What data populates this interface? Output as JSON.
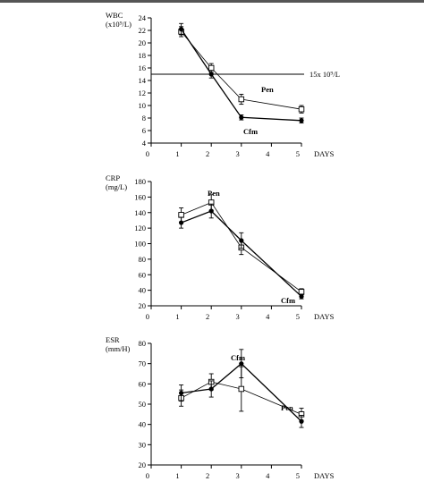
{
  "chart_data": [
    {
      "type": "line",
      "ylabel": "WBC",
      "yunit": "(x10⁹/L)",
      "xlabel": "DAYS",
      "xlim": [
        0,
        5
      ],
      "ylim": [
        4,
        24
      ],
      "xticks": [
        0,
        1,
        2,
        3,
        4,
        5
      ],
      "yticks": [
        4,
        6,
        8,
        10,
        12,
        14,
        16,
        18,
        20,
        22,
        24
      ],
      "reference_line": {
        "y": 15,
        "label": "15x 10⁹/L"
      },
      "series": [
        {
          "name": "Pen",
          "marker": "open-square",
          "x": [
            1,
            2,
            3,
            5
          ],
          "y": [
            21.8,
            16.0,
            11.0,
            9.4
          ],
          "err": [
            0.8,
            0.7,
            0.8,
            0.6
          ]
        },
        {
          "name": "Cfm",
          "marker": "filled-circle",
          "x": [
            1,
            2,
            3,
            5
          ],
          "y": [
            22.2,
            15.0,
            8.1,
            7.6
          ],
          "err": [
            0.9,
            0.6,
            0.4,
            0.4
          ]
        }
      ]
    },
    {
      "type": "line",
      "ylabel": "CRP",
      "yunit": "(mg/L)",
      "xlabel": "DAYS",
      "xlim": [
        0,
        5
      ],
      "ylim": [
        20,
        180
      ],
      "xticks": [
        0,
        1,
        2,
        3,
        4,
        5
      ],
      "yticks": [
        20,
        40,
        60,
        80,
        100,
        120,
        140,
        160,
        180
      ],
      "series": [
        {
          "name": "Pen",
          "marker": "open-square",
          "x": [
            1,
            2,
            3,
            5
          ],
          "y": [
            137,
            153,
            95,
            38
          ],
          "err": [
            9,
            10,
            9,
            4
          ]
        },
        {
          "name": "Cfm",
          "marker": "filled-circle",
          "x": [
            1,
            2,
            3,
            5
          ],
          "y": [
            127,
            142,
            104,
            32
          ],
          "err": [
            7,
            9,
            10,
            3
          ]
        }
      ]
    },
    {
      "type": "line",
      "ylabel": "ESR",
      "yunit": "(mm/H)",
      "xlabel": "DAYS",
      "xlim": [
        0,
        5
      ],
      "ylim": [
        20,
        80
      ],
      "xticks": [
        0,
        1,
        2,
        3,
        4,
        5
      ],
      "yticks": [
        20,
        30,
        40,
        50,
        60,
        70,
        80
      ],
      "series": [
        {
          "name": "Pen",
          "marker": "open-square",
          "x": [
            1,
            2,
            3,
            5
          ],
          "y": [
            53,
            61,
            57.5,
            45
          ],
          "err": [
            4,
            4,
            11,
            3
          ]
        },
        {
          "name": "Cfm",
          "marker": "filled-circle",
          "x": [
            1,
            2,
            3,
            5
          ],
          "y": [
            55.5,
            57.5,
            70,
            41.5
          ],
          "err": [
            4,
            4,
            7,
            3
          ]
        }
      ]
    }
  ]
}
